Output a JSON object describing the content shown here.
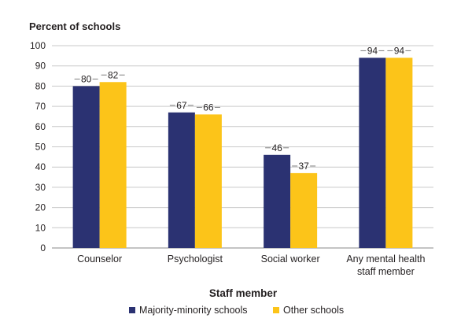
{
  "chart_data": {
    "type": "bar",
    "ylabel": "Percent of schools",
    "xlabel": "Staff member",
    "ylim": [
      0,
      100
    ],
    "yticks": [
      0,
      10,
      20,
      30,
      40,
      50,
      60,
      70,
      80,
      90,
      100
    ],
    "grid": true,
    "legend_position": "bottom",
    "categories": [
      [
        "Counselor"
      ],
      [
        "Psychologist"
      ],
      [
        "Social worker"
      ],
      [
        "Any mental health",
        "staff member"
      ]
    ],
    "series": [
      {
        "name": "Majority-minority schools",
        "color": "#2b3272",
        "values": [
          80,
          67,
          46,
          94
        ]
      },
      {
        "name": "Other schools",
        "color": "#fcc419",
        "values": [
          82,
          66,
          37,
          94
        ]
      }
    ]
  }
}
